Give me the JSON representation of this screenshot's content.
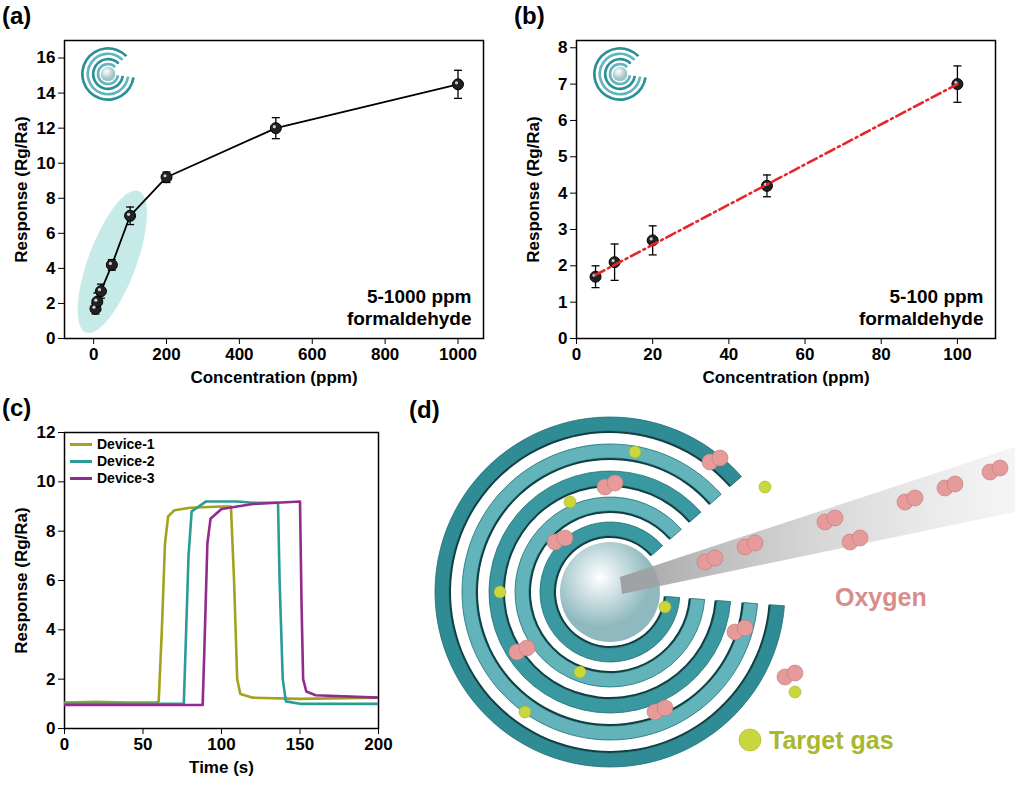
{
  "chart_data": [
    {
      "type": "line",
      "panel": "(a)",
      "xlabel": "Concentration (ppm)",
      "ylabel": "Response (Rg/Ra)",
      "xlim": [
        -80,
        1070
      ],
      "xticks": [
        0,
        200,
        400,
        600,
        800,
        1000
      ],
      "ylim": [
        0,
        17
      ],
      "yticks": [
        0,
        2,
        4,
        6,
        8,
        10,
        12,
        14,
        16
      ],
      "annotation": [
        "5-1000 ppm",
        "formaldehyde"
      ],
      "series": [
        {
          "type": "line",
          "color": "#000000",
          "marker": "circle",
          "x": [
            5,
            10,
            20,
            50,
            100,
            200,
            500,
            1000
          ],
          "values": [
            1.7,
            2.1,
            2.7,
            4.2,
            7.0,
            9.2,
            12.0,
            14.5
          ],
          "errors": [
            0.3,
            0.5,
            0.4,
            0.3,
            0.5,
            0.3,
            0.6,
            0.8
          ]
        }
      ]
    },
    {
      "type": "scatter",
      "panel": "(b)",
      "xlabel": "Concentration (ppm)",
      "ylabel": "Response (Rg/Ra)",
      "xlim": [
        0,
        110
      ],
      "xticks": [
        0,
        20,
        40,
        60,
        80,
        100
      ],
      "ylim": [
        0,
        8.2
      ],
      "yticks": [
        0,
        1,
        2,
        3,
        4,
        5,
        6,
        7,
        8
      ],
      "annotation": [
        "5-100 ppm",
        "formaldehyde"
      ],
      "series": [
        {
          "type": "scatter",
          "color": "#000000",
          "marker": "circle",
          "x": [
            5,
            10,
            20,
            50,
            100
          ],
          "values": [
            1.7,
            2.1,
            2.7,
            4.2,
            7.0
          ],
          "errors": [
            0.3,
            0.5,
            0.4,
            0.3,
            0.5
          ]
        },
        {
          "type": "line",
          "color": "#e8262a",
          "line_style": "dashdot",
          "x": [
            5,
            100
          ],
          "values": [
            1.75,
            7.0
          ]
        }
      ]
    },
    {
      "type": "line",
      "panel": "(c)",
      "xlabel": "Time (s)",
      "ylabel": "Response (Rg/Ra)",
      "xlim": [
        0,
        200
      ],
      "xticks": [
        0,
        50,
        100,
        150,
        200
      ],
      "ylim": [
        0,
        12
      ],
      "yticks": [
        0,
        2,
        4,
        6,
        8,
        10,
        12
      ],
      "legend": "top-left",
      "series": [
        {
          "name": "Device-1",
          "color": "#a3a11f",
          "x": [
            0,
            20,
            40,
            58,
            60,
            62,
            64,
            66,
            70,
            80,
            100,
            106,
            108,
            110,
            112,
            120,
            150,
            200
          ],
          "values": [
            1.05,
            1.08,
            1.05,
            1.05,
            1.1,
            4.0,
            7.5,
            8.6,
            8.85,
            8.95,
            9.0,
            9.0,
            6.0,
            2.0,
            1.4,
            1.25,
            1.2,
            1.25
          ]
        },
        {
          "name": "Device-2",
          "color": "#2b9b96",
          "x": [
            0,
            50,
            76,
            77,
            79,
            81,
            90,
            110,
            120,
            136,
            137,
            139,
            141,
            150,
            200
          ],
          "values": [
            1.0,
            1.0,
            1.0,
            3.0,
            7.0,
            8.8,
            9.2,
            9.2,
            9.15,
            9.15,
            6.0,
            2.0,
            1.1,
            1.0,
            1.0
          ]
        },
        {
          "name": "Device-3",
          "color": "#922b8f",
          "x": [
            0,
            50,
            88,
            89,
            91,
            93,
            100,
            120,
            150,
            151,
            152,
            154,
            160,
            200
          ],
          "values": [
            0.95,
            0.95,
            0.95,
            3.0,
            7.5,
            8.5,
            8.9,
            9.1,
            9.2,
            5.0,
            2.0,
            1.5,
            1.35,
            1.25
          ]
        }
      ]
    },
    {
      "type": "diagram",
      "panel": "(d)",
      "labels": [
        {
          "text": "Oxygen",
          "color": "#d98c8e"
        },
        {
          "text": "Target gas",
          "color": "#a8b82e"
        }
      ]
    }
  ]
}
